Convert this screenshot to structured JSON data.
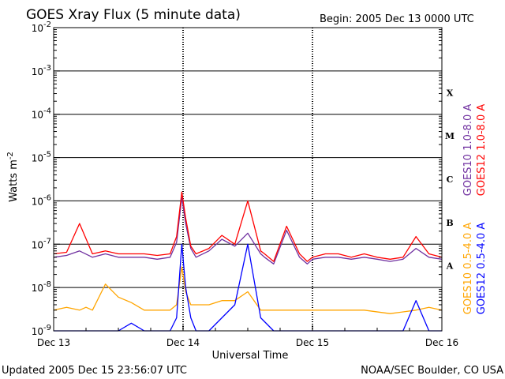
{
  "header": {
    "title": "GOES Xray Flux (5 minute data)",
    "begin": "Begin:  2005 Dec 13 0000 UTC"
  },
  "footer": {
    "updated": "Updated 2005 Dec 15 23:56:07 UTC",
    "credit": "NOAA/SEC Boulder, CO USA"
  },
  "chart_data": {
    "type": "line",
    "title": "GOES Xray Flux (5 minute data)",
    "xlabel": "Universal Time",
    "ylabel": "Watts m",
    "ylabel_sup": "-2",
    "y_scale": "log",
    "ylim": [
      1e-09,
      0.01
    ],
    "xlim": [
      0,
      3
    ],
    "x_unit": "days since Dec 13 0000 UTC",
    "x_ticks": [
      {
        "x": 0,
        "label": "Dec 13"
      },
      {
        "x": 1,
        "label": "Dec 14"
      },
      {
        "x": 2,
        "label": "Dec 15"
      },
      {
        "x": 3,
        "label": "Dec 16"
      }
    ],
    "y_ticks": [
      {
        "exp": -2,
        "base": "10",
        "sup": "-2"
      },
      {
        "exp": -3,
        "base": "10",
        "sup": "-3"
      },
      {
        "exp": -4,
        "base": "10",
        "sup": "-4"
      },
      {
        "exp": -5,
        "base": "10",
        "sup": "-5"
      },
      {
        "exp": -6,
        "base": "10",
        "sup": "-6"
      },
      {
        "exp": -7,
        "base": "10",
        "sup": "-7"
      },
      {
        "exp": -8,
        "base": "10",
        "sup": "-8"
      },
      {
        "exp": -9,
        "base": "10",
        "sup": "-9"
      }
    ],
    "flare_classes": [
      {
        "label": "X",
        "exp": -4
      },
      {
        "label": "M",
        "exp": -5
      },
      {
        "label": "C",
        "exp": -6
      },
      {
        "label": "B",
        "exp": -7
      },
      {
        "label": "A",
        "exp": -8
      }
    ],
    "grid": true,
    "legend_placement": "right",
    "series": [
      {
        "name": "GOES10 1.0-8.0 A",
        "color": "#7030a0",
        "x": [
          0,
          0.1,
          0.2,
          0.3,
          0.4,
          0.5,
          0.6,
          0.7,
          0.8,
          0.9,
          0.95,
          0.99,
          1.02,
          1.06,
          1.1,
          1.2,
          1.3,
          1.4,
          1.5,
          1.6,
          1.63,
          1.7,
          1.8,
          1.9,
          1.96,
          2.0,
          2.1,
          2.2,
          2.3,
          2.4,
          2.5,
          2.6,
          2.7,
          2.8,
          2.9,
          3.0
        ],
        "y": [
          5e-08,
          5.5e-08,
          7e-08,
          5e-08,
          6e-08,
          5e-08,
          5e-08,
          5e-08,
          4.5e-08,
          5e-08,
          1.1e-07,
          1.2e-06,
          3e-07,
          8e-08,
          5e-08,
          7e-08,
          1.3e-07,
          9e-08,
          1.8e-07,
          6e-08,
          5e-08,
          3.5e-08,
          2.1e-07,
          5e-08,
          3.5e-08,
          4.5e-08,
          5e-08,
          5e-08,
          4.5e-08,
          5e-08,
          4.5e-08,
          4e-08,
          4.5e-08,
          8e-08,
          5e-08,
          4.5e-08
        ]
      },
      {
        "name": "GOES12 1.0-8.0 A",
        "color": "#ff0000",
        "x": [
          0,
          0.1,
          0.2,
          0.3,
          0.4,
          0.5,
          0.6,
          0.7,
          0.8,
          0.9,
          0.95,
          0.99,
          1.02,
          1.06,
          1.1,
          1.2,
          1.3,
          1.4,
          1.5,
          1.6,
          1.63,
          1.7,
          1.8,
          1.9,
          1.96,
          2.0,
          2.1,
          2.2,
          2.3,
          2.4,
          2.5,
          2.6,
          2.7,
          2.8,
          2.9,
          3.0
        ],
        "y": [
          6e-08,
          6.5e-08,
          3e-07,
          6e-08,
          7e-08,
          6e-08,
          6e-08,
          6e-08,
          5.5e-08,
          6e-08,
          1.5e-07,
          1.6e-06,
          4e-07,
          9e-08,
          6e-08,
          8e-08,
          1.6e-07,
          1e-07,
          1e-06,
          7e-08,
          6e-08,
          4e-08,
          2.6e-07,
          6e-08,
          4e-08,
          5e-08,
          6e-08,
          6e-08,
          5e-08,
          6e-08,
          5e-08,
          4.5e-08,
          5e-08,
          1.5e-07,
          6e-08,
          5e-08
        ]
      },
      {
        "name": "GOES10 0.5-4.0 A",
        "color": "#ffa500",
        "x": [
          0,
          0.1,
          0.2,
          0.25,
          0.3,
          0.4,
          0.5,
          0.6,
          0.7,
          0.8,
          0.9,
          0.95,
          0.99,
          1.02,
          1.06,
          1.2,
          1.3,
          1.4,
          1.5,
          1.6,
          1.7,
          1.8,
          1.9,
          2.0,
          2.2,
          2.4,
          2.6,
          2.8,
          2.9,
          3.0
        ],
        "y": [
          3e-09,
          3.5e-09,
          3e-09,
          3.5e-09,
          3e-09,
          1.2e-08,
          6e-09,
          4.5e-09,
          3e-09,
          3e-09,
          3e-09,
          4e-09,
          3e-08,
          8e-09,
          4e-09,
          4e-09,
          5e-09,
          5e-09,
          8e-09,
          3e-09,
          3e-09,
          3e-09,
          3e-09,
          3e-09,
          3e-09,
          3e-09,
          2.5e-09,
          3e-09,
          3.5e-09,
          3e-09
        ]
      },
      {
        "name": "GOES12 0.5-4.0 A",
        "color": "#0000ff",
        "x": [
          0,
          0.1,
          0.2,
          0.3,
          0.4,
          0.5,
          0.6,
          0.7,
          0.8,
          0.9,
          0.95,
          0.99,
          1.02,
          1.06,
          1.1,
          1.2,
          1.3,
          1.4,
          1.5,
          1.6,
          1.7,
          1.8,
          1.9,
          2.0,
          2.2,
          2.4,
          2.6,
          2.7,
          2.8,
          2.9,
          3.0
        ],
        "y": [
          1e-09,
          1e-09,
          1e-09,
          1e-09,
          1e-09,
          1e-09,
          1.5e-09,
          1e-09,
          1e-09,
          1e-09,
          2e-09,
          1e-07,
          1e-08,
          2e-09,
          1e-09,
          1e-09,
          2e-09,
          4e-09,
          1e-07,
          2e-09,
          1e-09,
          1e-09,
          1e-09,
          1e-09,
          1e-09,
          1e-09,
          1e-09,
          1e-09,
          5e-09,
          1e-09,
          1e-09
        ]
      }
    ]
  }
}
